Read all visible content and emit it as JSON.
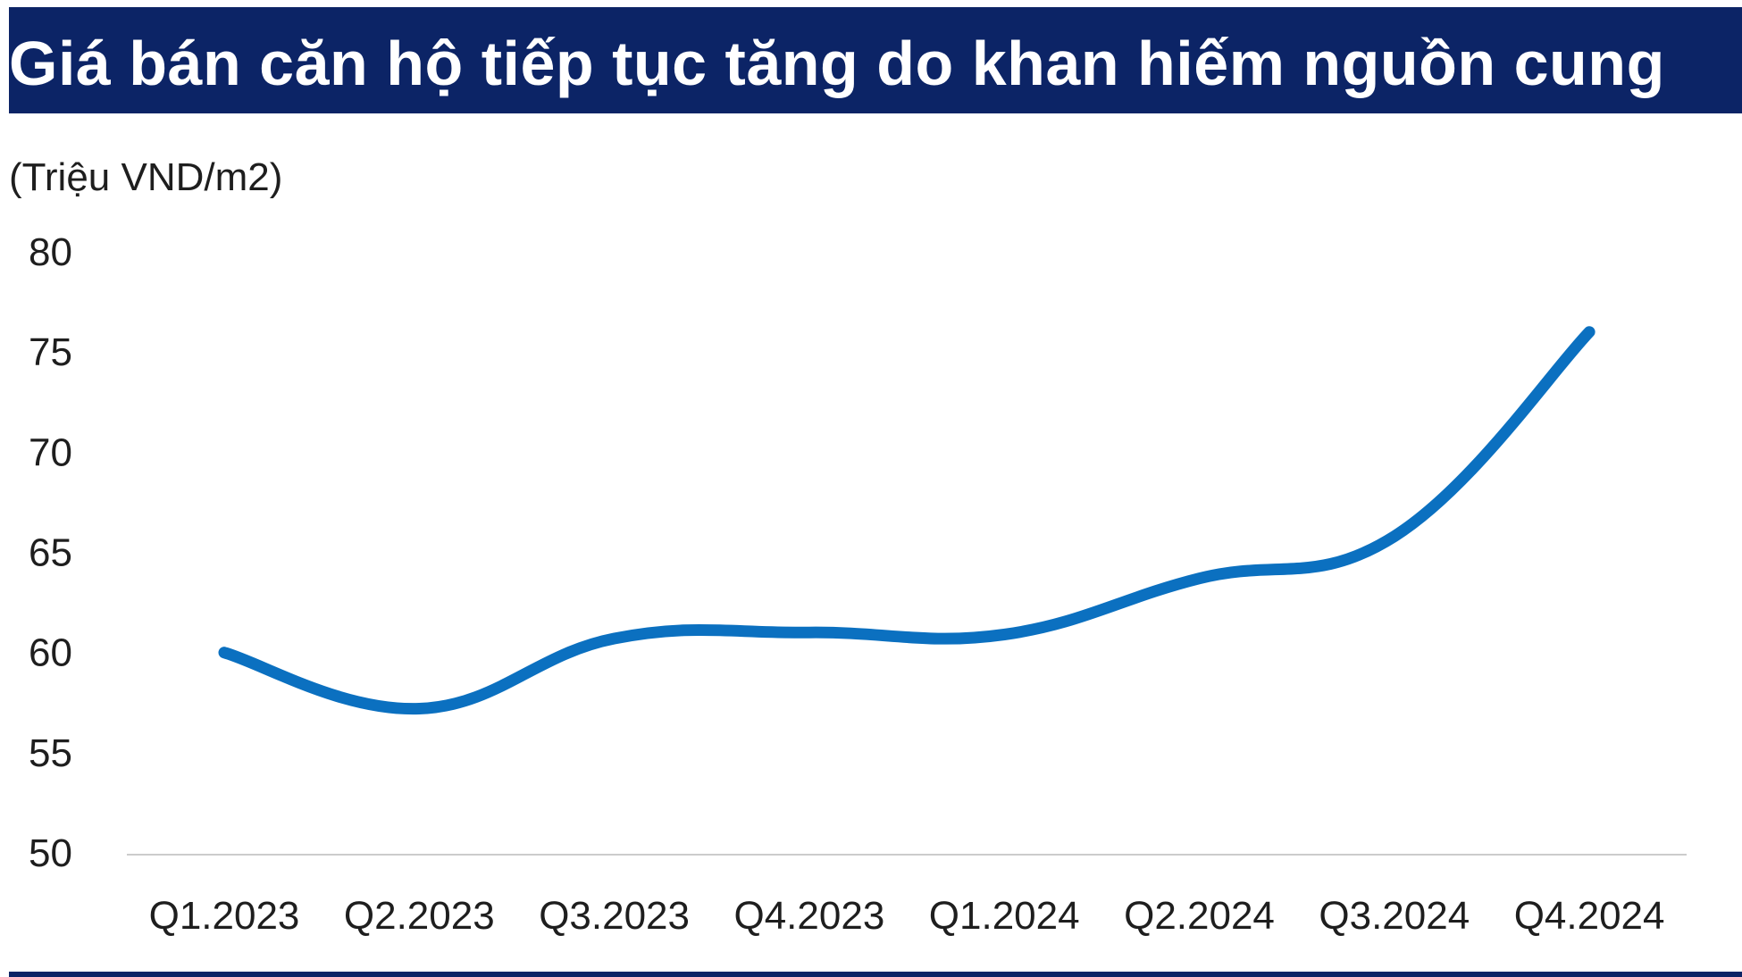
{
  "title": "Giá bán căn hộ tiếp tục tăng do khan hiếm nguồn cung",
  "colors": {
    "title_bg": "#0c2466",
    "title_text": "#ffffff",
    "line": "#0b70c0",
    "axis": "#cccccc",
    "text": "#1e1e1e"
  },
  "chart_data": {
    "type": "line",
    "title": "Giá bán căn hộ tiếp tục tăng do khan hiếm nguồn cung",
    "xlabel": "",
    "ylabel": "(Triệu VND/m2)",
    "ylim": [
      50,
      80
    ],
    "yticks": [
      "80",
      "75",
      "70",
      "65",
      "60",
      "55",
      "50"
    ],
    "grid": false,
    "categories": [
      "Q1.2023",
      "Q2.2023",
      "Q3.2023",
      "Q4.2023",
      "Q1.2024",
      "Q2.2024",
      "Q3.2024",
      "Q4.2024"
    ],
    "series": [
      {
        "values": [
          60,
          57.2,
          60.7,
          61,
          60.9,
          63.7,
          65.8,
          76
        ]
      }
    ]
  }
}
